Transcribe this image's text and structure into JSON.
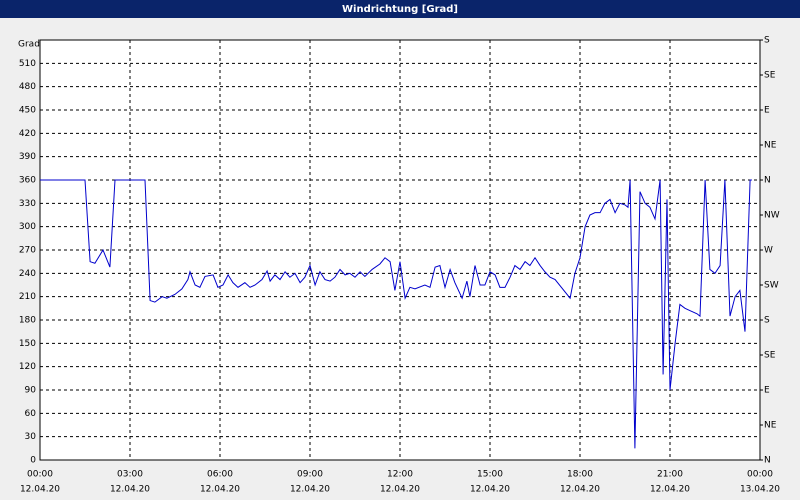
{
  "chart_data": {
    "type": "line",
    "title": "Windrichtung [Grad]",
    "y_label": "Grad",
    "x": [
      0,
      1.5,
      1.67,
      1.83,
      2.1,
      2.33,
      2.5,
      3.5,
      3.67,
      3.83,
      4.07,
      4.23,
      4.5,
      4.73,
      4.93,
      5,
      5.17,
      5.33,
      5.5,
      5.77,
      5.93,
      6.1,
      6.27,
      6.43,
      6.6,
      6.83,
      7,
      7.17,
      7.4,
      7.57,
      7.67,
      7.83,
      8,
      8.17,
      8.33,
      8.5,
      8.67,
      8.83,
      9,
      9.17,
      9.33,
      9.5,
      9.67,
      9.83,
      10,
      10.17,
      10.33,
      10.5,
      10.67,
      10.83,
      11.07,
      11.33,
      11.5,
      11.67,
      11.83,
      12,
      12.17,
      12.33,
      12.5,
      12.83,
      13,
      13.17,
      13.33,
      13.5,
      13.67,
      13.83,
      14.07,
      14.23,
      14.33,
      14.5,
      14.67,
      14.83,
      15,
      15.17,
      15.33,
      15.5,
      15.67,
      15.83,
      16,
      16.17,
      16.33,
      16.5,
      16.67,
      16.83,
      17,
      17.17,
      17.67,
      17.83,
      18,
      18.17,
      18.33,
      18.5,
      18.67,
      18.83,
      19,
      19.17,
      19.33,
      19.5,
      19.6,
      19.67,
      19.83,
      20,
      20.17,
      20.33,
      20.5,
      20.67,
      20.77,
      20.9,
      21,
      21.17,
      21.33,
      21.5,
      21.67,
      21.9,
      22,
      22.17,
      22.33,
      22.5,
      22.67,
      22.83,
      23,
      23.17,
      23.33,
      23.5,
      23.67,
      23.73
    ],
    "series": [
      {
        "color": "#0000cc",
        "values": [
          360,
          360,
          255,
          253,
          270,
          248,
          360,
          360,
          205,
          203,
          210,
          208,
          213,
          220,
          232,
          242,
          225,
          222,
          236,
          238,
          222,
          225,
          238,
          228,
          222,
          228,
          222,
          225,
          232,
          243,
          230,
          238,
          232,
          242,
          235,
          240,
          228,
          235,
          250,
          225,
          242,
          232,
          230,
          235,
          245,
          238,
          240,
          235,
          242,
          236,
          245,
          252,
          260,
          255,
          218,
          255,
          208,
          222,
          220,
          225,
          222,
          248,
          250,
          222,
          245,
          228,
          208,
          230,
          210,
          250,
          225,
          225,
          242,
          238,
          222,
          222,
          235,
          250,
          245,
          255,
          250,
          260,
          250,
          242,
          235,
          232,
          208,
          240,
          260,
          300,
          315,
          318,
          318,
          330,
          335,
          318,
          330,
          328,
          325,
          360,
          15,
          345,
          330,
          325,
          310,
          360,
          110,
          335,
          90,
          150,
          200,
          195,
          192,
          188,
          185,
          360,
          245,
          240,
          250,
          360,
          185,
          210,
          218,
          165,
          360,
          360
        ]
      }
    ],
    "xlim": [
      0,
      24
    ],
    "xticks": [
      {
        "value": 0,
        "label": "00:00",
        "date": "12.04.20"
      },
      {
        "value": 3,
        "label": "03:00",
        "date": "12.04.20"
      },
      {
        "value": 6,
        "label": "06:00",
        "date": "12.04.20"
      },
      {
        "value": 9,
        "label": "09:00",
        "date": "12.04.20"
      },
      {
        "value": 12,
        "label": "12:00",
        "date": "12.04.20"
      },
      {
        "value": 15,
        "label": "15:00",
        "date": "12.04.20"
      },
      {
        "value": 18,
        "label": "18:00",
        "date": "12.04.20"
      },
      {
        "value": 21,
        "label": "21:00",
        "date": "12.04.20"
      },
      {
        "value": 24,
        "label": "00:00",
        "date": "13.04.20"
      }
    ],
    "ylim": [
      0,
      540
    ],
    "yticks": [
      0,
      30,
      60,
      90,
      120,
      150,
      180,
      210,
      240,
      270,
      300,
      330,
      360,
      390,
      420,
      450,
      480,
      510
    ],
    "y2lim": [
      0,
      540
    ],
    "y2ticks": [
      {
        "value": 0,
        "label": "N"
      },
      {
        "value": 45,
        "label": "NE"
      },
      {
        "value": 90,
        "label": "E"
      },
      {
        "value": 135,
        "label": "SE"
      },
      {
        "value": 180,
        "label": "S"
      },
      {
        "value": 225,
        "label": "SW"
      },
      {
        "value": 270,
        "label": "W"
      },
      {
        "value": 315,
        "label": "NW"
      },
      {
        "value": 360,
        "label": "N"
      },
      {
        "value": 405,
        "label": "NE"
      },
      {
        "value": 450,
        "label": "E"
      },
      {
        "value": 495,
        "label": "SE"
      },
      {
        "value": 540,
        "label": "S"
      }
    ],
    "grid": true
  }
}
